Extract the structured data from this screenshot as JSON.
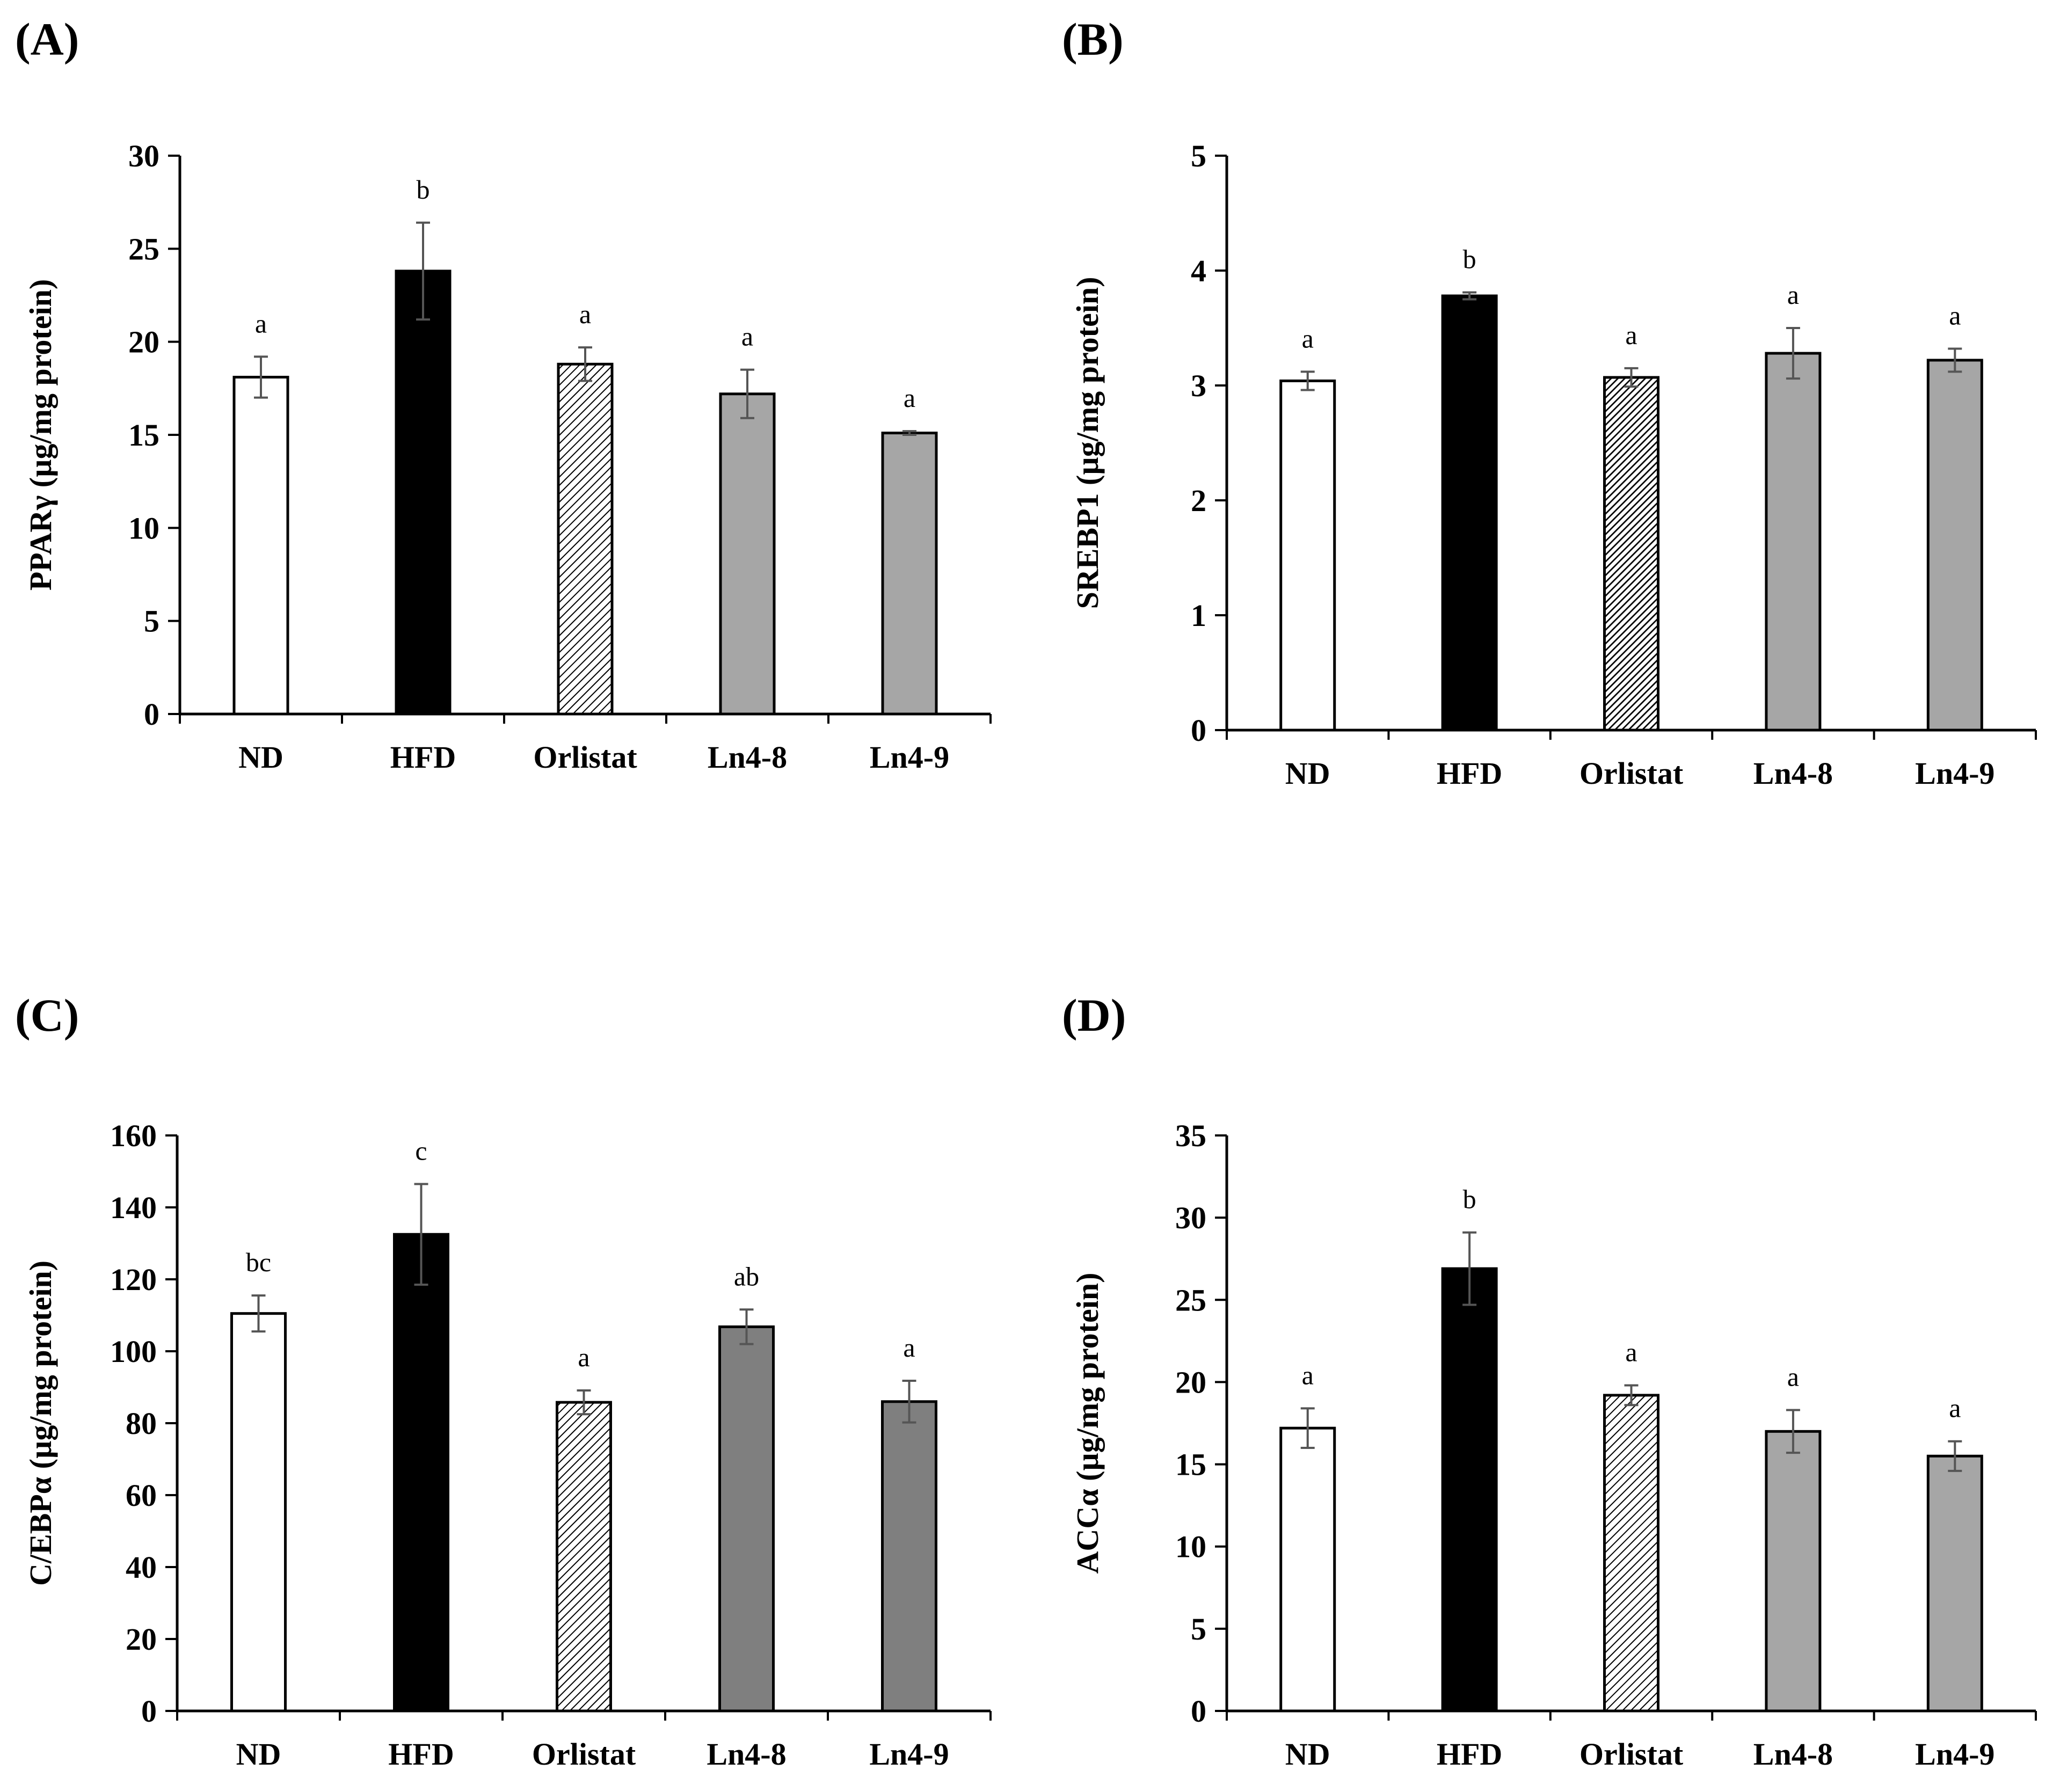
{
  "colors": {
    "white": "#ffffff",
    "black": "#000000",
    "gray": "#a6a6a6",
    "dark_gray": "#7f7f7f",
    "error": "#555555"
  },
  "chart_data": [
    {
      "type": "bar",
      "panel": "(A)",
      "ylabel": "PPARγ (µg/mg protein)",
      "ylim": [
        0,
        30
      ],
      "yticks": [
        0,
        5,
        10,
        15,
        20,
        25,
        30
      ],
      "categories": [
        "ND",
        "HFD",
        "Orlistat",
        "Ln4-8",
        "Ln4-9"
      ],
      "values": [
        18.1,
        23.8,
        18.8,
        17.2,
        15.1
      ],
      "errors": [
        1.1,
        2.6,
        0.9,
        1.3,
        0.1
      ],
      "significance": [
        "a",
        "b",
        "a",
        "a",
        "a"
      ],
      "fills": [
        "white",
        "black",
        "hatch",
        "gray",
        "gray"
      ]
    },
    {
      "type": "bar",
      "panel": "(B)",
      "ylabel": "SREBP1 (µg/mg protein)",
      "ylim": [
        0,
        5
      ],
      "yticks": [
        0,
        1,
        2,
        3,
        4,
        5
      ],
      "categories": [
        "ND",
        "HFD",
        "Orlistat",
        "Ln4-8",
        "Ln4-9"
      ],
      "values": [
        3.04,
        3.78,
        3.07,
        3.28,
        3.22
      ],
      "errors": [
        0.08,
        0.03,
        0.08,
        0.22,
        0.1
      ],
      "significance": [
        "a",
        "b",
        "a",
        "a",
        "a"
      ],
      "fills": [
        "white",
        "black",
        "hatch-dense",
        "gray",
        "gray"
      ]
    },
    {
      "type": "bar",
      "panel": "(C)",
      "ylabel": "C/EBPα (µg/mg protein)",
      "ylim": [
        0,
        160
      ],
      "yticks": [
        0,
        20,
        40,
        60,
        80,
        100,
        120,
        140,
        160
      ],
      "categories": [
        "ND",
        "HFD",
        "Orlistat",
        "Ln4-8",
        "Ln4-9"
      ],
      "values": [
        110.5,
        132.5,
        85.8,
        106.8,
        86.0
      ],
      "errors": [
        5.0,
        14.0,
        3.3,
        4.8,
        5.8
      ],
      "significance": [
        "bc",
        "c",
        "a",
        "ab",
        "a"
      ],
      "fills": [
        "white",
        "black",
        "hatch",
        "dark_gray",
        "dark_gray"
      ]
    },
    {
      "type": "bar",
      "panel": "(D)",
      "ylabel": "ACCα (µg/mg protein)",
      "ylim": [
        0,
        35
      ],
      "yticks": [
        0,
        5,
        10,
        15,
        20,
        25,
        30,
        35
      ],
      "categories": [
        "ND",
        "HFD",
        "Orlistat",
        "Ln4-8",
        "Ln4-9"
      ],
      "values": [
        17.2,
        26.9,
        19.2,
        17.0,
        15.5
      ],
      "errors": [
        1.2,
        2.2,
        0.6,
        1.3,
        0.9
      ],
      "significance": [
        "a",
        "b",
        "a",
        "a",
        "a"
      ],
      "fills": [
        "white",
        "black",
        "hatch",
        "gray",
        "gray"
      ]
    }
  ]
}
